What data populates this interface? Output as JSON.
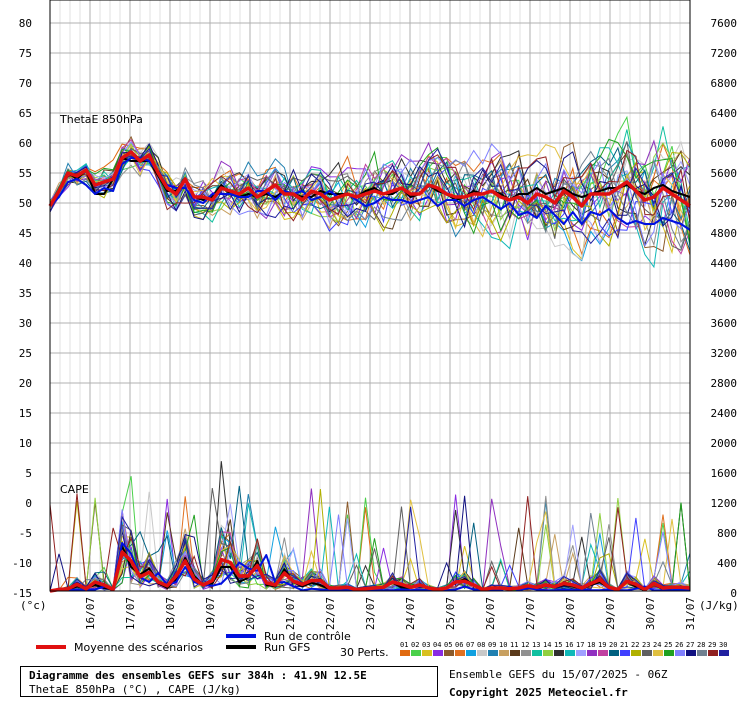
{
  "chart_data": {
    "type": "line",
    "left_axis": {
      "ticks": [
        "80",
        "75",
        "70",
        "65",
        "60",
        "55",
        "50",
        "45",
        "40",
        "35",
        "30",
        "25",
        "20",
        "15",
        "10",
        "5",
        "0",
        "-5",
        "-10",
        "-15"
      ],
      "unit": "(°c)"
    },
    "right_axis": {
      "ticks": [
        "7600",
        "7200",
        "6800",
        "6400",
        "6000",
        "5600",
        "5200",
        "4800",
        "4400",
        "4000",
        "3600",
        "3200",
        "2800",
        "2400",
        "2000",
        "1600",
        "1200",
        "800",
        "400",
        "0"
      ],
      "unit": "(J/kg)"
    },
    "x_dates": [
      "16/07",
      "17/07",
      "18/07",
      "19/07",
      "20/07",
      "21/07",
      "22/07",
      "23/07",
      "24/07",
      "25/07",
      "26/07",
      "27/07",
      "28/07",
      "29/07",
      "30/07",
      "31/07"
    ],
    "panels": [
      "ThetaE 850hPa",
      "CAPE"
    ],
    "series": [
      {
        "name": "Moyenne des scénarios",
        "theta_e": [
          49.5,
          52,
          55,
          54.5,
          55.5,
          53,
          53.5,
          54,
          57.5,
          58.5,
          57,
          58,
          55,
          52.5,
          51.5,
          54,
          51,
          51,
          50.5,
          52.5,
          52,
          51.5,
          52.5,
          51,
          52,
          53,
          51.5,
          51.5,
          50.5,
          52,
          51.5,
          50.5,
          51,
          51.5,
          51,
          51.5,
          52,
          51.5,
          52,
          52.5,
          51.5,
          51.5,
          53,
          52.5,
          51.5,
          51,
          51,
          51.5,
          51.5,
          52,
          51,
          50.5,
          51,
          50,
          51.5,
          51,
          50,
          52,
          51,
          49.5,
          51.5,
          51.5,
          51.5,
          52.5,
          53.5,
          52,
          50.5,
          51,
          52.5,
          51.5,
          50.5,
          49.5
        ],
        "cape": [
          0,
          10,
          15,
          45,
          15,
          60,
          40,
          10,
          260,
          200,
          95,
          125,
          60,
          35,
          100,
          200,
          80,
          40,
          70,
          210,
          190,
          100,
          100,
          170,
          55,
          40,
          120,
          65,
          45,
          70,
          70,
          20,
          20,
          25,
          10,
          15,
          20,
          25,
          60,
          45,
          25,
          40,
          20,
          10,
          20,
          60,
          65,
          40,
          10,
          20,
          20,
          15,
          20,
          35,
          25,
          40,
          30,
          50,
          40,
          20,
          50,
          75,
          25,
          10,
          65,
          45,
          10,
          50,
          20,
          25,
          25,
          20
        ]
      },
      {
        "name": "Run de contrôle",
        "theta_e": [
          49.5,
          51,
          53.5,
          54,
          53,
          51.5,
          52.5,
          52,
          56.5,
          57.5,
          57.5,
          57,
          55,
          53,
          52.5,
          52.5,
          50.5,
          50,
          51.5,
          51.5,
          51.5,
          51,
          51,
          52,
          52,
          50.5,
          52,
          51.5,
          52,
          50.5,
          51,
          52,
          51,
          51.5,
          50.5,
          49.5,
          50,
          51,
          50.5,
          50.5,
          50,
          50.5,
          51,
          49.5,
          50.5,
          50.5,
          49.5,
          50.5,
          51,
          50,
          49,
          50,
          48,
          48.5,
          47.5,
          49.5,
          48,
          46.5,
          48.5,
          46.5,
          48.5,
          48,
          49,
          47.5,
          46.5,
          47,
          46.5,
          46.5,
          47.5,
          47,
          46.5,
          45.5
        ],
        "cape": [
          0,
          5,
          5,
          10,
          10,
          10,
          30,
          15,
          320,
          250,
          90,
          60,
          120,
          40,
          60,
          160,
          60,
          40,
          35,
          50,
          110,
          190,
          150,
          135,
          240,
          55,
          60,
          30,
          5,
          15,
          10,
          5,
          5,
          5,
          5,
          10,
          10,
          5,
          5,
          10,
          5,
          10,
          5,
          15,
          5,
          10,
          30,
          10,
          5,
          5,
          5,
          30,
          5,
          20,
          10,
          5,
          5,
          10,
          5,
          10,
          5,
          5,
          10,
          5,
          5,
          15,
          30,
          5,
          5,
          5,
          10,
          5
        ]
      },
      {
        "name": "Run GFS",
        "theta_e": [
          49.5,
          52,
          55,
          54,
          55.5,
          51.5,
          51.5,
          54,
          57.5,
          57,
          57,
          57,
          54.5,
          52,
          52,
          54,
          51,
          50.5,
          51,
          53,
          51.5,
          51,
          51.5,
          51,
          51.5,
          51,
          52,
          51.5,
          51,
          51,
          52,
          51.5,
          51.5,
          51.5,
          51,
          52,
          52.5,
          51.5,
          51.5,
          52.5,
          51,
          51.5,
          53,
          52,
          51.5,
          50.5,
          51,
          52,
          51.5,
          52,
          51.5,
          50.5,
          51.5,
          51.5,
          52.5,
          51.5,
          52,
          52.5,
          51.5,
          51,
          51.5,
          52,
          52.5,
          52.5,
          53,
          52,
          51.5,
          52.5,
          53,
          52,
          51.5,
          51
        ],
        "cape": [
          0,
          5,
          10,
          30,
          20,
          40,
          20,
          10,
          300,
          160,
          110,
          150,
          50,
          20,
          80,
          220,
          100,
          40,
          50,
          160,
          160,
          60,
          90,
          200,
          40,
          30,
          145,
          60,
          30,
          55,
          40,
          10,
          15,
          20,
          5,
          15,
          15,
          20,
          55,
          25,
          20,
          45,
          10,
          5,
          25,
          55,
          80,
          40,
          5,
          10,
          15,
          10,
          20,
          30,
          15,
          35,
          25,
          40,
          30,
          15,
          40,
          60,
          20,
          5,
          60,
          30,
          5,
          45,
          10,
          20,
          20,
          15
        ]
      }
    ]
  },
  "labels": {
    "theta_panel": "ThetaE 850hPa",
    "cape_panel": "CAPE",
    "left_unit": "(°c)",
    "right_unit": "(J/kg)",
    "mean": "Moyenne des scénarios",
    "control": "Run de contrôle",
    "gfs": "Run GFS",
    "perts": "30 Perts.",
    "pert_numbers": [
      "01",
      "02",
      "03",
      "04",
      "05",
      "06",
      "07",
      "08",
      "09",
      "10",
      "11",
      "12",
      "13",
      "14",
      "15",
      "16",
      "17",
      "18",
      "19",
      "20",
      "21",
      "22",
      "23",
      "24",
      "25",
      "26",
      "27",
      "28",
      "29",
      "30"
    ]
  },
  "colors": {
    "mean": "#e01010",
    "control": "#0010e0",
    "gfs": "#000000",
    "grid": "#b0b0b0",
    "perts": [
      "#e06a10",
      "#4ad04a",
      "#d8c020",
      "#8a2be2",
      "#8b5a2b",
      "#e07020",
      "#10a0e0",
      "#c8c8c8",
      "#2080b0",
      "#c8a060",
      "#5a3a1a",
      "#909090",
      "#10c0a0",
      "#90d040",
      "#303030",
      "#10b8b8",
      "#a0a0ff",
      "#9030c0",
      "#c040a0",
      "#006080",
      "#4040ff",
      "#b0b000",
      "#606060",
      "#e0c040",
      "#20a020",
      "#8080ff",
      "#101080",
      "#708090",
      "#902020",
      "#2020a0"
    ]
  },
  "info": {
    "title": "Diagramme des ensembles GEFS sur 384h : 41.9N 12.5E",
    "subtitle": "ThetaE 850hPa (°C) , CAPE (J/kg)",
    "run": "Ensemble GEFS du 15/07/2025 - 06Z",
    "copyright": "Copyright 2025 Meteociel.fr"
  }
}
